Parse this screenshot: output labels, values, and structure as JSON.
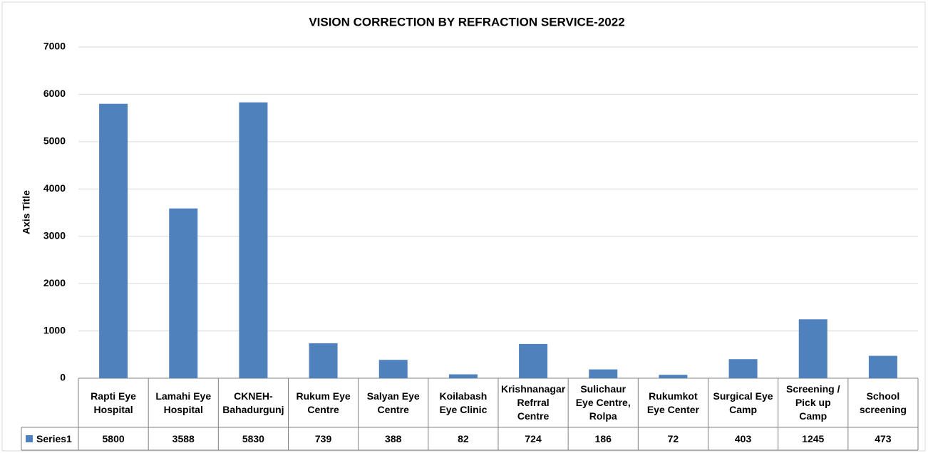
{
  "chart_data": {
    "type": "bar",
    "title": "VISION CORRECTION BY REFRACTION SERVICE-2022",
    "y_axis_label": "Axis Title",
    "categories": [
      "Rapti Eye Hospital",
      "Lamahi Eye Hospital",
      "CKNEH-Bahadurgunj",
      "Rukum Eye Centre",
      "Salyan Eye Centre",
      "Koilabash Eye Clinic",
      "Krishnanagar Refrral Centre",
      "Sulichaur Eye Centre, Rolpa",
      "Rukumkot Eye Center",
      "Surgical Eye Camp",
      "Screening / Pick up Camp",
      "School screening"
    ],
    "series": [
      {
        "name": "Series1",
        "color": "#4f81bd",
        "values": [
          5800,
          3588,
          5830,
          739,
          388,
          82,
          724,
          186,
          72,
          403,
          1245,
          473
        ]
      }
    ],
    "ylim": [
      0,
      7000
    ],
    "yticks": [
      0,
      1000,
      2000,
      3000,
      4000,
      5000,
      6000,
      7000
    ],
    "grid": true
  }
}
